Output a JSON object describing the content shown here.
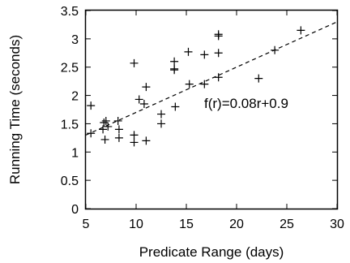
{
  "chart_data": {
    "type": "scatter",
    "title": "",
    "xlabel": "Predicate Range (days)",
    "ylabel": "Running Time (seconds)",
    "xlim": [
      5,
      30
    ],
    "ylim": [
      0,
      3.5
    ],
    "xticks": [
      "5",
      "10",
      "15",
      "20",
      "25",
      "30"
    ],
    "yticks": [
      "0",
      "0.5",
      "1",
      "1.5",
      "2",
      "2.5",
      "3",
      "3.5"
    ],
    "grid": false,
    "legend": "none",
    "marker": "+",
    "color": "#000000",
    "points": [
      {
        "x": 5.5,
        "y": 1.82
      },
      {
        "x": 5.5,
        "y": 1.33
      },
      {
        "x": 6.7,
        "y": 1.4
      },
      {
        "x": 6.8,
        "y": 1.52
      },
      {
        "x": 6.9,
        "y": 1.22
      },
      {
        "x": 7.0,
        "y": 1.55
      },
      {
        "x": 7.2,
        "y": 1.45
      },
      {
        "x": 8.2,
        "y": 1.55
      },
      {
        "x": 8.3,
        "y": 1.4
      },
      {
        "x": 8.3,
        "y": 1.25
      },
      {
        "x": 9.8,
        "y": 2.57
      },
      {
        "x": 9.8,
        "y": 1.3
      },
      {
        "x": 9.8,
        "y": 1.17
      },
      {
        "x": 10.3,
        "y": 1.93
      },
      {
        "x": 10.8,
        "y": 1.85
      },
      {
        "x": 11.0,
        "y": 2.15
      },
      {
        "x": 11.0,
        "y": 1.2
      },
      {
        "x": 12.5,
        "y": 1.67
      },
      {
        "x": 12.5,
        "y": 1.5
      },
      {
        "x": 13.8,
        "y": 2.6
      },
      {
        "x": 13.8,
        "y": 2.47
      },
      {
        "x": 13.8,
        "y": 2.45
      },
      {
        "x": 13.9,
        "y": 1.8
      },
      {
        "x": 15.2,
        "y": 2.77
      },
      {
        "x": 15.3,
        "y": 2.2
      },
      {
        "x": 16.8,
        "y": 2.72
      },
      {
        "x": 16.8,
        "y": 2.2
      },
      {
        "x": 18.2,
        "y": 3.08
      },
      {
        "x": 18.2,
        "y": 3.05
      },
      {
        "x": 18.2,
        "y": 2.75
      },
      {
        "x": 18.2,
        "y": 2.32
      },
      {
        "x": 22.2,
        "y": 2.3
      },
      {
        "x": 23.8,
        "y": 2.8
      },
      {
        "x": 26.4,
        "y": 3.15
      }
    ],
    "fit": {
      "slope": 0.08,
      "intercept": 0.9,
      "style": "dashed"
    },
    "annotation": "f(r)=0.08r+0.9"
  }
}
